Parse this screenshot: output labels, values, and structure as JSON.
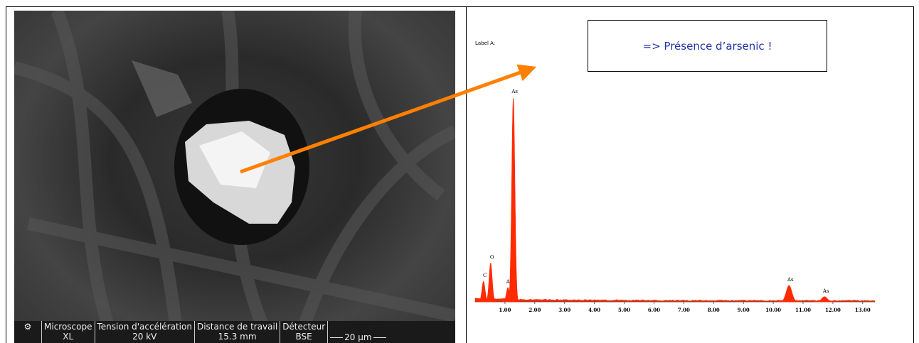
{
  "sem_panel": {
    "info_bar": [
      {
        "label": "Microscope",
        "value": "XL"
      },
      {
        "label": "Tension d'accélération",
        "value": "20 kV"
      },
      {
        "label": "Distance de travail",
        "value": "15.3 mm"
      },
      {
        "label": "Détecteur",
        "value": "BSE"
      }
    ],
    "scale_bar": "20 µm"
  },
  "spectrum_label": "Label A:",
  "callout": "=> Présence d’arsenic !",
  "chart_data": {
    "type": "spectrum",
    "color": "#ff2a00",
    "xlim": [
      0,
      13.41
    ],
    "ylim": [
      0,
      100
    ],
    "xticks": [
      {
        "value": 1,
        "label": "1.00"
      },
      {
        "value": 2,
        "label": "2.00"
      },
      {
        "value": 3,
        "label": "3.00"
      },
      {
        "value": 4,
        "label": "4.00"
      },
      {
        "value": 5,
        "label": "5.00"
      },
      {
        "value": 6,
        "label": "6.00"
      },
      {
        "value": 7,
        "label": "7.00"
      },
      {
        "value": 8,
        "label": "8.00"
      },
      {
        "value": 9,
        "label": "9.00"
      },
      {
        "value": 10,
        "label": "10.00"
      },
      {
        "value": 11,
        "label": "11.00"
      },
      {
        "value": 12,
        "label": "12.00"
      },
      {
        "value": 13,
        "label": "13.00"
      }
    ],
    "peaks": [
      {
        "label": "C",
        "x": 0.28,
        "value": 10
      },
      {
        "label": "O",
        "x": 0.52,
        "value": 19
      },
      {
        "label": "As",
        "x": 1.1,
        "value": 7
      },
      {
        "label": "As",
        "x": 1.28,
        "value": 100
      },
      {
        "label": "As",
        "x": 10.53,
        "value": 8
      },
      {
        "label": "As",
        "x": 11.72,
        "value": 2.5
      }
    ]
  }
}
